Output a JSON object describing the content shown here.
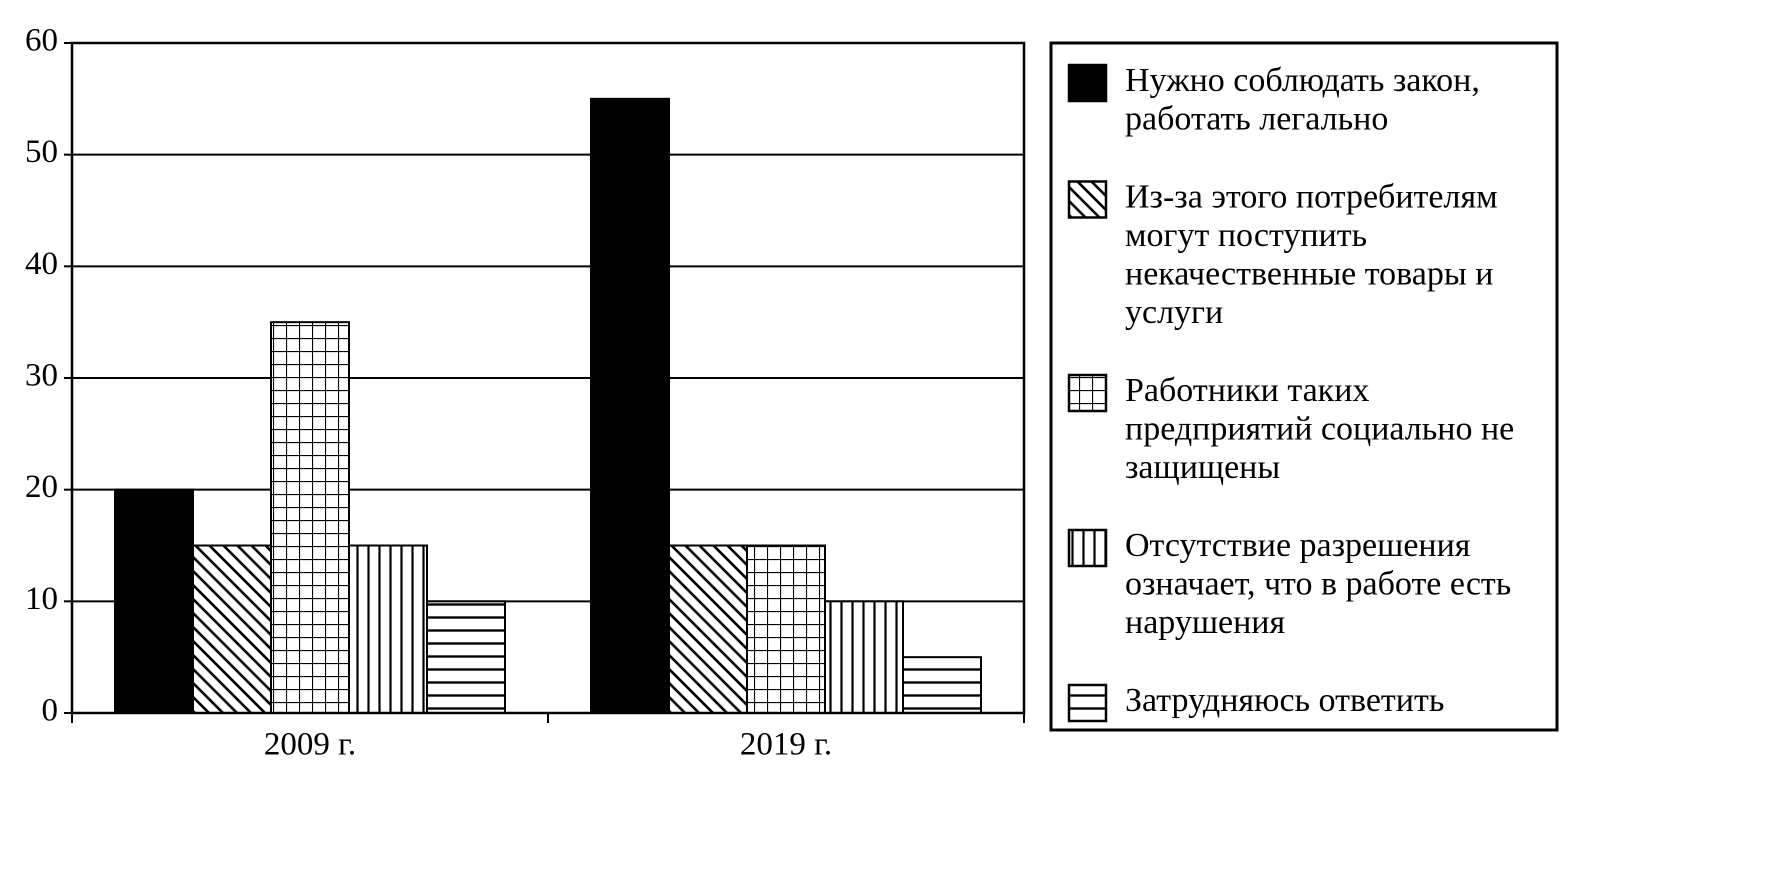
{
  "chart_data": {
    "type": "bar",
    "categories": [
      "2009 г.",
      "2019 г."
    ],
    "series": [
      {
        "name": "Нужно соблюдать закон, работать легально",
        "color": "#000000",
        "pattern": "solid",
        "values": [
          20,
          55
        ]
      },
      {
        "name": "Из-за этого потребителям могут поступить некачественные товары и услуги",
        "color": "#000000",
        "pattern": "diagonal",
        "values": [
          15,
          15
        ]
      },
      {
        "name": "Работники таких предприятий социально не защищены",
        "color": "#000000",
        "pattern": "grid",
        "values": [
          35,
          15
        ]
      },
      {
        "name": "Отсутствие разрешения означает, что в работе есть нарушения",
        "color": "#000000",
        "pattern": "vertical",
        "values": [
          15,
          10
        ]
      },
      {
        "name": "Затрудняюсь ответить",
        "color": "#000000",
        "pattern": "horizontal",
        "values": [
          10,
          5
        ]
      }
    ],
    "ylim": [
      0,
      60
    ],
    "yticks": [
      0,
      10,
      20,
      30,
      40,
      50,
      60
    ],
    "grid": true,
    "legend": "right"
  }
}
